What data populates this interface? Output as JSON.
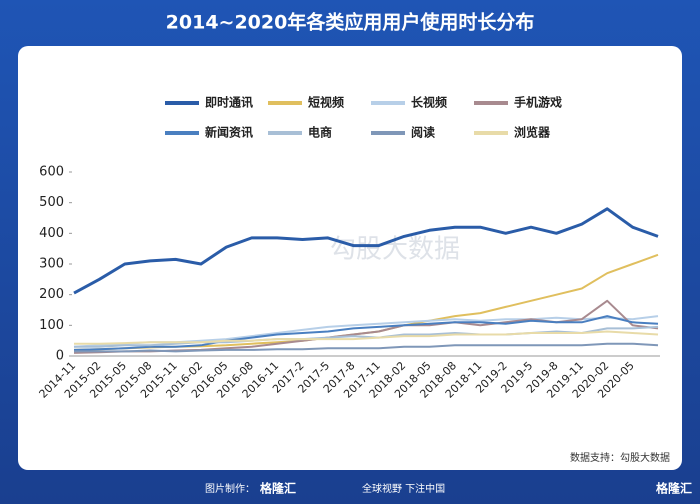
{
  "chart_data": {
    "type": "line",
    "title": "2014~2020年各类应用用户使用时长分布",
    "categories": [
      "2014-11",
      "2015-02",
      "2015-05",
      "2015-08",
      "2015-11",
      "2016-02",
      "2016-05",
      "2016-08",
      "2016-11",
      "2017-2",
      "2017-5",
      "2017-8",
      "2017-11",
      "2018-02",
      "2018-05",
      "2018-08",
      "2018-11",
      "2019-2",
      "2019-5",
      "2019-8",
      "2019-11",
      "2020-02",
      "2020-05",
      null
    ],
    "series": [
      {
        "name": "即时通讯",
        "color": "#2a5ca8",
        "values": [
          205,
          250,
          300,
          310,
          315,
          300,
          355,
          385,
          385,
          380,
          385,
          360,
          360,
          390,
          410,
          420,
          420,
          400,
          420,
          400,
          430,
          480,
          420,
          390
        ]
      },
      {
        "name": "短视频",
        "color": "#e0bf5e",
        "values": [
          20,
          22,
          25,
          28,
          30,
          32,
          35,
          40,
          45,
          50,
          60,
          70,
          80,
          100,
          115,
          130,
          140,
          160,
          180,
          200,
          220,
          270,
          300,
          330
        ]
      },
      {
        "name": "长视频",
        "color": "#b7cfe8",
        "values": [
          30,
          35,
          40,
          45,
          45,
          50,
          55,
          65,
          75,
          85,
          95,
          100,
          105,
          110,
          115,
          120,
          115,
          120,
          120,
          125,
          120,
          125,
          120,
          130
        ]
      },
      {
        "name": "手机游戏",
        "color": "#a88a8f",
        "values": [
          10,
          12,
          15,
          15,
          18,
          20,
          25,
          30,
          40,
          50,
          60,
          70,
          80,
          100,
          100,
          110,
          100,
          110,
          120,
          110,
          120,
          180,
          100,
          90
        ]
      },
      {
        "name": "新闻资讯",
        "color": "#4a7fc0",
        "values": [
          20,
          22,
          25,
          30,
          30,
          35,
          50,
          60,
          70,
          75,
          80,
          90,
          95,
          100,
          105,
          110,
          110,
          105,
          115,
          110,
          110,
          130,
          110,
          105
        ]
      },
      {
        "name": "电商",
        "color": "#a8bfd6",
        "values": [
          30,
          30,
          35,
          35,
          40,
          45,
          45,
          50,
          55,
          55,
          60,
          65,
          60,
          70,
          70,
          75,
          70,
          70,
          75,
          80,
          75,
          90,
          90,
          95
        ]
      },
      {
        "name": "阅读",
        "color": "#7f97b8",
        "values": [
          15,
          15,
          15,
          18,
          15,
          18,
          20,
          20,
          22,
          22,
          25,
          25,
          25,
          30,
          30,
          35,
          35,
          35,
          35,
          35,
          35,
          40,
          40,
          35
        ]
      },
      {
        "name": "浏览器",
        "color": "#e8dba8",
        "values": [
          40,
          40,
          42,
          45,
          45,
          45,
          50,
          50,
          55,
          55,
          55,
          55,
          60,
          65,
          65,
          70,
          70,
          70,
          75,
          75,
          75,
          80,
          75,
          70
        ]
      }
    ],
    "ylim": [
      0,
      600
    ],
    "yticks": [
      0,
      100,
      200,
      300,
      400,
      500,
      600
    ],
    "source": "数据支持：勾股大数据",
    "watermark": "勾股大数据"
  },
  "footer": {
    "credit": "图片制作：",
    "brand": "格隆汇",
    "slogan": "全球视野 下注中国"
  }
}
